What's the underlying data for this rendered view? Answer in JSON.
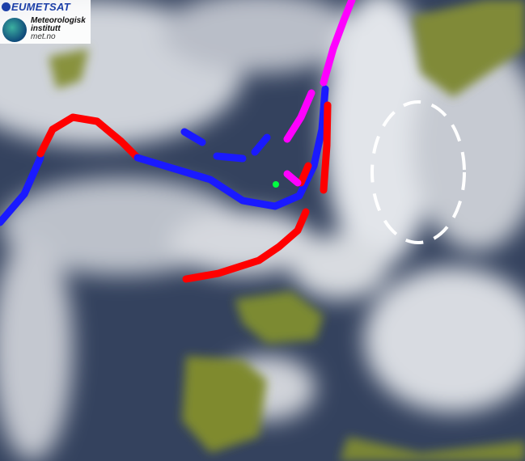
{
  "logo": {
    "eumetsat": "EUMETSAT",
    "institute_line1": "Meteorologisk",
    "institute_line2": "institutt",
    "site": "met.no"
  },
  "fronts": {
    "cold_color": "#1a1aff",
    "warm_color": "#ff0000",
    "occluded_color": "#ff00ff",
    "highlight_ellipse_color": "#ffffff",
    "point_color": "#00ff40"
  },
  "colors": {
    "ocean": "#2c3c58",
    "land": "#7f8a2e",
    "cloud": "#e8eaee"
  }
}
